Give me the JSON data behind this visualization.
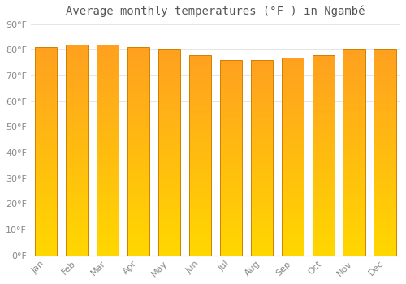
{
  "title": "Average monthly temperatures (°F ) in Ngambé",
  "months": [
    "Jan",
    "Feb",
    "Mar",
    "Apr",
    "May",
    "Jun",
    "Jul",
    "Aug",
    "Sep",
    "Oct",
    "Nov",
    "Dec"
  ],
  "values": [
    81,
    82,
    82,
    81,
    80,
    78,
    76,
    76,
    77,
    78,
    80,
    80
  ],
  "ylim": [
    0,
    90
  ],
  "yticks": [
    0,
    10,
    20,
    30,
    40,
    50,
    60,
    70,
    80,
    90
  ],
  "bar_color_bottom": "#FFD700",
  "bar_color_top": "#FFA020",
  "bar_edge_color": "#D08000",
  "background_color": "#FFFFFF",
  "grid_color": "#E0E0E0",
  "title_fontsize": 10,
  "tick_fontsize": 8,
  "bar_width": 0.72
}
